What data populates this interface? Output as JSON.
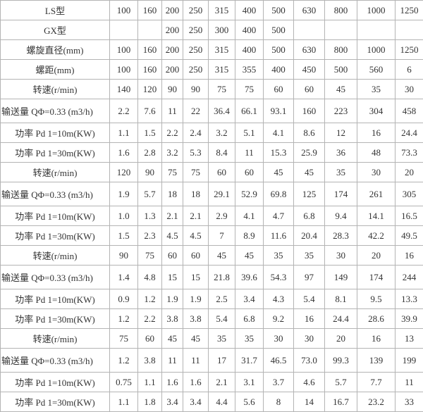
{
  "rows": [
    {
      "label": "LS型",
      "values": [
        "100",
        "160",
        "200",
        "250",
        "315",
        "400",
        "500",
        "630",
        "800",
        "1000",
        "1250"
      ]
    },
    {
      "label": "GX型",
      "values": [
        "",
        "",
        "200",
        "250",
        "300",
        "400",
        "500",
        "",
        "",
        "",
        ""
      ]
    },
    {
      "label": "螺旋直径(mm)",
      "values": [
        "100",
        "160",
        "200",
        "250",
        "315",
        "400",
        "500",
        "630",
        "800",
        "1000",
        "1250"
      ]
    },
    {
      "label": "螺距(mm)",
      "values": [
        "100",
        "160",
        "200",
        "250",
        "315",
        "355",
        "400",
        "450",
        "500",
        "560",
        "6"
      ]
    },
    {
      "label": "转速(r/min)",
      "values": [
        "140",
        "120",
        "90",
        "90",
        "75",
        "75",
        "60",
        "60",
        "45",
        "35",
        "30"
      ]
    },
    {
      "label": "输送量 QΦ=0.33 (m3/h)",
      "values": [
        "2.2",
        "7.6",
        "11",
        "22",
        "36.4",
        "66.1",
        "93.1",
        "160",
        "223",
        "304",
        "458"
      ]
    },
    {
      "label": "功率 Pd 1=10m(KW)",
      "values": [
        "1.1",
        "1.5",
        "2.2",
        "2.4",
        "3.2",
        "5.1",
        "4.1",
        "8.6",
        "12",
        "16",
        "24.4"
      ]
    },
    {
      "label": "功率 Pd 1=30m(KW)",
      "values": [
        "1.6",
        "2.8",
        "3.2",
        "5.3",
        "8.4",
        "11",
        "15.3",
        "25.9",
        "36",
        "48",
        "73.3"
      ]
    },
    {
      "label": "转速(r/min)",
      "values": [
        "120",
        "90",
        "75",
        "75",
        "60",
        "60",
        "45",
        "45",
        "35",
        "30",
        "20"
      ]
    },
    {
      "label": "输送量 QΦ=0.33 (m3/h)",
      "values": [
        "1.9",
        "5.7",
        "18",
        "18",
        "29.1",
        "52.9",
        "69.8",
        "125",
        "174",
        "261",
        "305"
      ]
    },
    {
      "label": "功率 Pd 1=10m(KW)",
      "values": [
        "1.0",
        "1.3",
        "2.1",
        "2.1",
        "2.9",
        "4.1",
        "4.7",
        "6.8",
        "9.4",
        "14.1",
        "16.5"
      ]
    },
    {
      "label": "功率 Pd 1=30m(KW)",
      "values": [
        "1.5",
        "2.3",
        "4.5",
        "4.5",
        "7",
        "8.9",
        "11.6",
        "20.4",
        "28.3",
        "42.2",
        "49.5"
      ]
    },
    {
      "label": "转速(r/min)",
      "values": [
        "90",
        "75",
        "60",
        "60",
        "45",
        "45",
        "35",
        "35",
        "30",
        "20",
        "16"
      ]
    },
    {
      "label": "输送量 QΦ=0.33 (m3/h)",
      "values": [
        "1.4",
        "4.8",
        "15",
        "15",
        "21.8",
        "39.6",
        "54.3",
        "97",
        "149",
        "174",
        "244"
      ]
    },
    {
      "label": "功率 Pd 1=10m(KW)",
      "values": [
        "0.9",
        "1.2",
        "1.9",
        "1.9",
        "2.5",
        "3.4",
        "4.3",
        "5.4",
        "8.1",
        "9.5",
        "13.3"
      ]
    },
    {
      "label": "功率 Pd 1=30m(KW)",
      "values": [
        "1.2",
        "2.2",
        "3.8",
        "3.8",
        "5.4",
        "6.8",
        "9.2",
        "16",
        "24.4",
        "28.6",
        "39.9"
      ]
    },
    {
      "label": "转速(r/min)",
      "values": [
        "75",
        "60",
        "45",
        "45",
        "35",
        "35",
        "30",
        "30",
        "20",
        "16",
        "13"
      ]
    },
    {
      "label": "输送量 QΦ=0.33 (m3/h)",
      "values": [
        "1.2",
        "3.8",
        "11",
        "11",
        "17",
        "31.7",
        "46.5",
        "73.0",
        "99.3",
        "139",
        "199"
      ]
    },
    {
      "label": "功率 Pd 1=10m(KW)",
      "values": [
        "0.75",
        "1.1",
        "1.6",
        "1.6",
        "2.1",
        "3.1",
        "3.7",
        "4.6",
        "5.7",
        "7.7",
        "11"
      ]
    },
    {
      "label": "功率 Pd 1=30m(KW)",
      "values": [
        "1.1",
        "1.8",
        "3.4",
        "3.4",
        "4.4",
        "5.6",
        "8",
        "14",
        "16.7",
        "23.2",
        "33"
      ]
    }
  ]
}
